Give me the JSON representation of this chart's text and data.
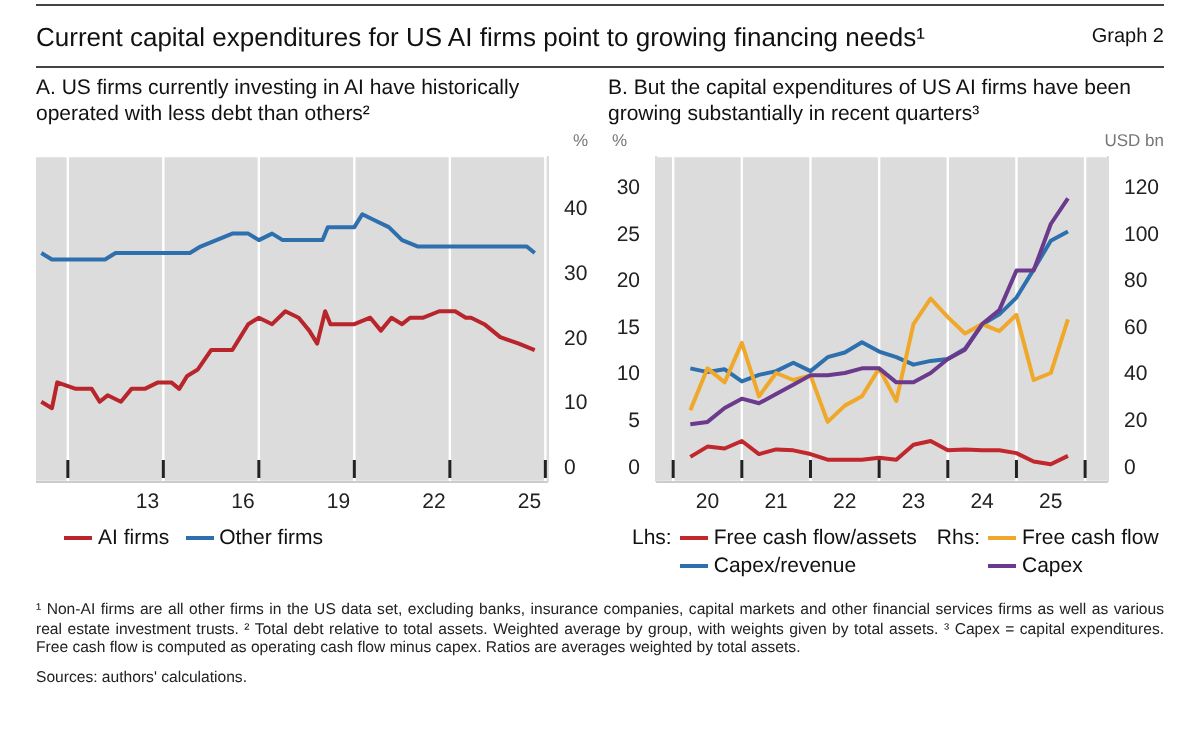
{
  "chart_data": [
    {
      "type": "line",
      "title": "Current capital expenditures for US AI firms point to growing financing needs¹",
      "subtitle": "A. US firms currently investing in AI have historically operated with less debt than others²",
      "annotations": [
        "Graph 2"
      ],
      "ylabel": "%",
      "xlim": [
        "2010-01",
        "2026-02"
      ],
      "xticks": [
        {
          "value": "2011-01",
          "label": null
        },
        {
          "value": "2013-07",
          "label": "13"
        },
        {
          "value": "2014-01",
          "label": null
        },
        {
          "value": "2016-07",
          "label": "16"
        },
        {
          "value": "2017-01",
          "label": null
        },
        {
          "value": "2019-07",
          "label": "19"
        },
        {
          "value": "2020-01",
          "label": null
        },
        {
          "value": "2022-07",
          "label": "22"
        },
        {
          "value": "2023-01",
          "label": null
        },
        {
          "value": "2025-07",
          "label": "25"
        },
        {
          "value": "2026-01",
          "label": null
        }
      ],
      "ylim": [
        -2.4,
        48
      ],
      "yticks": [
        0,
        10,
        20,
        30,
        40
      ],
      "grid": true,
      "legend": "bottom",
      "series": [
        {
          "name": "AI firms",
          "color": "#b8262c",
          "x": [
            "2010-03",
            "2010-07",
            "2010-09",
            "2011-04",
            "2011-10",
            "2012-01",
            "2012-04",
            "2012-09",
            "2013-01",
            "2013-06",
            "2013-11",
            "2014-04",
            "2014-07",
            "2014-10",
            "2015-02",
            "2015-07",
            "2015-10",
            "2016-03",
            "2016-06",
            "2016-09",
            "2017-01",
            "2017-06",
            "2017-11",
            "2018-04",
            "2018-08",
            "2018-11",
            "2019-02",
            "2019-04",
            "2019-08",
            "2020-01",
            "2020-07",
            "2020-11",
            "2021-03",
            "2021-07",
            "2021-10",
            "2022-03",
            "2022-09",
            "2023-03",
            "2023-07",
            "2023-09",
            "2024-02",
            "2024-08",
            "2025-03",
            "2025-09"
          ],
          "values": [
            10,
            9,
            13,
            12,
            12,
            10,
            11,
            10,
            12,
            12,
            13,
            13,
            12,
            14,
            15,
            18,
            18,
            18,
            20,
            22,
            23,
            22,
            24,
            23,
            21,
            19,
            24,
            22,
            22,
            22,
            23,
            21,
            23,
            22,
            23,
            23,
            24,
            24,
            23,
            23,
            22,
            20,
            19,
            18
          ]
        },
        {
          "name": "Other firms",
          "color": "#2e6fad",
          "x": [
            "2010-03",
            "2010-07",
            "2011-01",
            "2011-08",
            "2012-03",
            "2012-07",
            "2013-01",
            "2013-04",
            "2013-10",
            "2014-06",
            "2014-11",
            "2015-03",
            "2015-09",
            "2016-03",
            "2016-09",
            "2017-01",
            "2017-06",
            "2017-10",
            "2018-06",
            "2019-01",
            "2019-03",
            "2019-08",
            "2020-01",
            "2020-04",
            "2020-09",
            "2021-02",
            "2021-07",
            "2022-01",
            "2022-07",
            "2023-02",
            "2023-08",
            "2024-03",
            "2024-10",
            "2025-06",
            "2025-09"
          ],
          "values": [
            33,
            32,
            32,
            32,
            32,
            33,
            33,
            33,
            33,
            33,
            33,
            34,
            35,
            36,
            36,
            35,
            36,
            35,
            35,
            35,
            37,
            37,
            37,
            39,
            38,
            37,
            35,
            34,
            34,
            34,
            34,
            34,
            34,
            34,
            33
          ]
        }
      ]
    },
    {
      "type": "line",
      "subtitle": "B. But the capital expenditures of US AI firms have been growing substantially in recent quarters³",
      "ylabel": "%",
      "y2label": "USD bn",
      "annotations": [
        "Lhs:",
        "Rhs:",
        "¹ Non-AI firms are all other firms in the US data set, excluding banks, insurance companies, capital markets and other financial services firms as well as various real estate investment trusts.",
        "² Total debt relative to total assets. Weighted average by group, with weights given by total assets.",
        "³ Capex = capital expenditures. Free cash flow is computed as operating cash flow minus capex. Ratios are averages weighted by total assets.",
        "Sources: authors' calculations."
      ],
      "x": [
        "2020-04",
        "2020-07",
        "2020-10",
        "2021-01",
        "2021-04",
        "2021-07",
        "2021-10",
        "2022-01",
        "2022-04",
        "2022-07",
        "2022-10",
        "2023-01",
        "2023-04",
        "2023-07",
        "2023-10",
        "2024-01",
        "2024-04",
        "2024-07",
        "2024-10",
        "2025-01",
        "2025-04",
        "2025-07",
        "2025-10"
      ],
      "xlim": [
        "2019-10",
        "2026-05"
      ],
      "xticks": [
        {
          "value": "2020-01",
          "label": null
        },
        {
          "value": "2020-07",
          "label": "20"
        },
        {
          "value": "2021-01",
          "label": null
        },
        {
          "value": "2021-07",
          "label": "21"
        },
        {
          "value": "2022-01",
          "label": null
        },
        {
          "value": "2022-07",
          "label": "22"
        },
        {
          "value": "2023-01",
          "label": null
        },
        {
          "value": "2023-07",
          "label": "23"
        },
        {
          "value": "2024-01",
          "label": null
        },
        {
          "value": "2024-07",
          "label": "24"
        },
        {
          "value": "2025-01",
          "label": null
        },
        {
          "value": "2025-07",
          "label": "25"
        },
        {
          "value": "2026-01",
          "label": null
        }
      ],
      "ylim": [
        -1.7,
        33.3
      ],
      "yticks": [
        0,
        5,
        10,
        15,
        20,
        25,
        30
      ],
      "y2lim": [
        -6.8,
        133.2
      ],
      "y2ticks": [
        0,
        20,
        40,
        60,
        80,
        100,
        120
      ],
      "grid": true,
      "legend": "bottom",
      "series": [
        {
          "name": "Free cash flow/assets",
          "color": "#c0282d",
          "values": [
            1.0,
            2.1,
            1.9,
            2.7,
            1.3,
            1.8,
            1.7,
            1.3,
            0.7,
            0.7,
            0.7,
            0.9,
            0.7,
            2.3,
            2.7,
            1.7,
            1.8,
            1.7,
            1.7,
            1.4,
            0.5,
            0.2,
            1.1
          ]
        },
        {
          "name": "Capex/revenue",
          "color": "#2e6fad",
          "values": [
            10.5,
            10.1,
            10.4,
            9.1,
            9.8,
            10.2,
            11.1,
            10.2,
            11.7,
            12.2,
            13.3,
            12.3,
            11.7,
            10.9,
            11.3,
            11.5,
            12.6,
            15.2,
            16.3,
            18.1,
            21.1,
            24.2,
            25.2
          ]
        },
        {
          "name": "Free cash flow",
          "color": "#f0a82a",
          "axis": "y2",
          "values": [
            24,
            42,
            36,
            53,
            30,
            40,
            37,
            39,
            19,
            26,
            30,
            42,
            28,
            61,
            72,
            64,
            57,
            61,
            58,
            65,
            37,
            40,
            63
          ]
        },
        {
          "name": "Capex",
          "color": "#6b3a8c",
          "axis": "y2",
          "values": [
            18,
            19,
            25,
            29,
            27,
            31,
            35,
            39,
            39,
            40,
            42,
            42,
            36,
            36,
            40,
            46,
            50,
            61,
            67,
            84,
            84,
            104,
            115
          ]
        }
      ]
    }
  ]
}
